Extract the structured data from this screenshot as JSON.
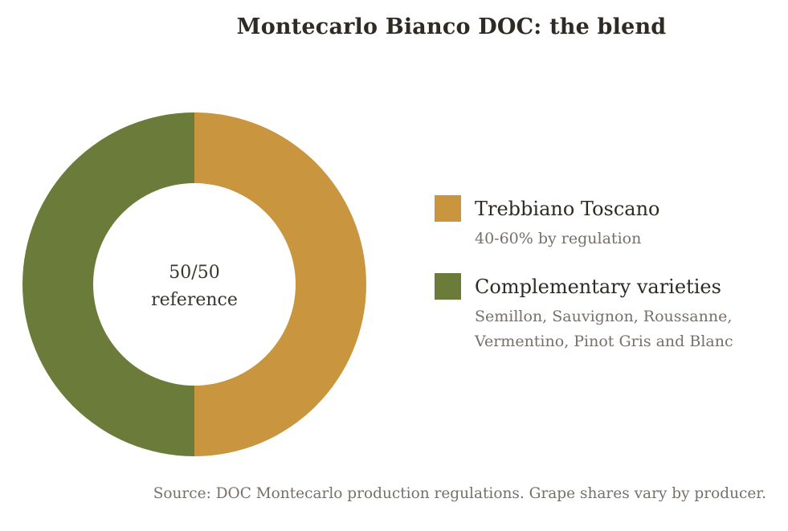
{
  "chart_data": {
    "type": "pie",
    "title": "Montecarlo Bianco DOC: the blend",
    "center_label": {
      "line1": "50/50",
      "line2": "reference"
    },
    "slices": [
      {
        "name": "Trebbiano Toscano",
        "value": 50,
        "detail": "40-60% by regulation",
        "color": "#c9963f"
      },
      {
        "name": "Complementary varieties",
        "value": 50,
        "detail": "Semillon, Sauvignon, Roussanne, Vermentino, Pinot Gris and Blanc",
        "color": "#6b7b3a"
      }
    ],
    "legend_position": "right",
    "donut": true,
    "source": "Source: DOC Montecarlo production regulations. Grape shares vary by producer."
  }
}
